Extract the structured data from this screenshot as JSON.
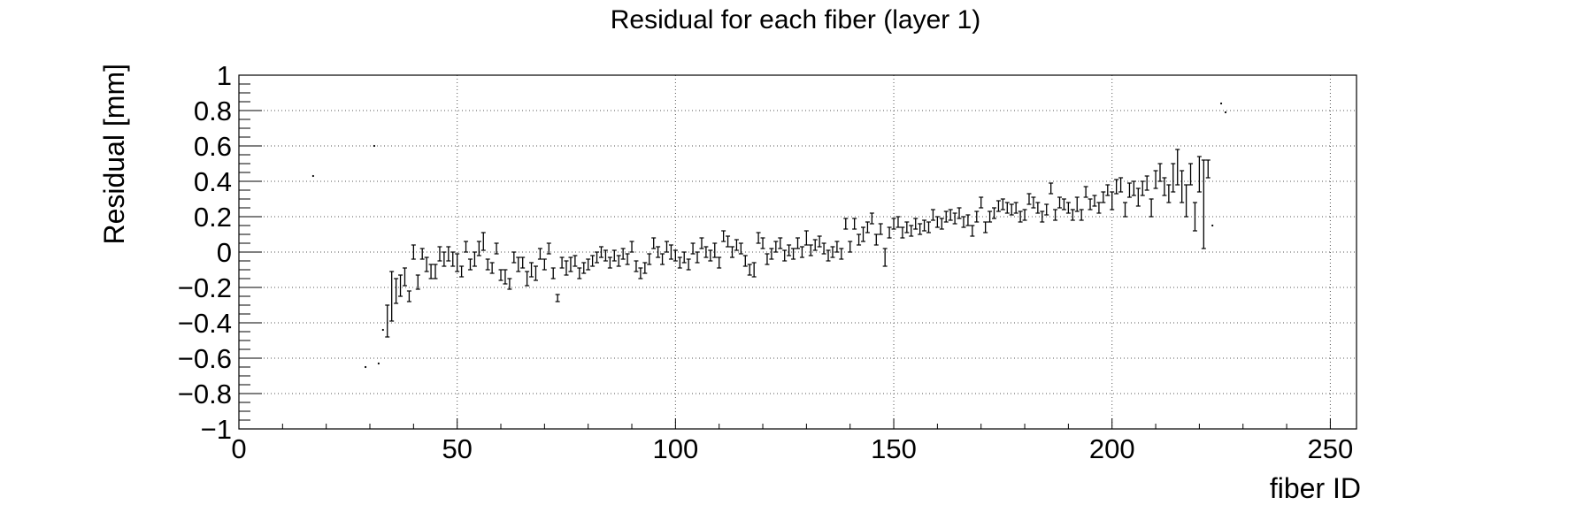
{
  "chart_data": {
    "type": "scatter",
    "title": "Residual for each fiber (layer 1)",
    "xlabel": "fiber ID",
    "ylabel": "Residual [mm]",
    "xlim": [
      0,
      256
    ],
    "ylim": [
      -1,
      1
    ],
    "grid": true,
    "x_ticks": [
      0,
      50,
      100,
      150,
      200,
      250
    ],
    "x_tick_labels": [
      "0",
      "50",
      "100",
      "150",
      "200",
      "250"
    ],
    "y_ticks": [
      -1,
      -0.8,
      -0.6,
      -0.4,
      -0.2,
      0,
      0.2,
      0.4,
      0.6,
      0.8,
      1
    ],
    "y_tick_labels": [
      "−1",
      "−0.8",
      "−0.6",
      "−0.4",
      "−0.2",
      "0",
      "0.2",
      "0.4",
      "0.6",
      "0.8",
      "1"
    ],
    "series": [
      {
        "error_bars": true,
        "points": [
          [
            17,
            0.43,
            0.0
          ],
          [
            29,
            -0.65,
            0.0
          ],
          [
            31,
            0.6,
            0.0
          ],
          [
            32,
            -0.63,
            0.0
          ],
          [
            33,
            -0.44,
            0.0
          ],
          [
            34,
            -0.39,
            0.09
          ],
          [
            35,
            -0.25,
            0.14
          ],
          [
            36,
            -0.22,
            0.07
          ],
          [
            37,
            -0.19,
            0.06
          ],
          [
            38,
            -0.14,
            0.05
          ],
          [
            39,
            -0.25,
            0.03
          ],
          [
            40,
            0.0,
            0.04
          ],
          [
            41,
            -0.17,
            0.04
          ],
          [
            42,
            -0.01,
            0.03
          ],
          [
            43,
            -0.07,
            0.04
          ],
          [
            44,
            -0.11,
            0.04
          ],
          [
            45,
            -0.11,
            0.04
          ],
          [
            46,
            -0.01,
            0.04
          ],
          [
            47,
            -0.04,
            0.04
          ],
          [
            48,
            -0.01,
            0.04
          ],
          [
            49,
            -0.04,
            0.04
          ],
          [
            50,
            -0.06,
            0.05
          ],
          [
            51,
            -0.11,
            0.03
          ],
          [
            52,
            0.03,
            0.03
          ],
          [
            53,
            -0.07,
            0.03
          ],
          [
            54,
            -0.04,
            0.04
          ],
          [
            55,
            0.02,
            0.04
          ],
          [
            56,
            0.06,
            0.05
          ],
          [
            57,
            -0.07,
            0.03
          ],
          [
            58,
            -0.09,
            0.03
          ],
          [
            59,
            0.02,
            0.03
          ],
          [
            60,
            -0.13,
            0.03
          ],
          [
            61,
            -0.14,
            0.04
          ],
          [
            62,
            -0.18,
            0.03
          ],
          [
            63,
            -0.03,
            0.03
          ],
          [
            64,
            -0.07,
            0.04
          ],
          [
            65,
            -0.06,
            0.03
          ],
          [
            66,
            -0.15,
            0.04
          ],
          [
            67,
            -0.1,
            0.04
          ],
          [
            68,
            -0.12,
            0.04
          ],
          [
            69,
            -0.01,
            0.03
          ],
          [
            70,
            -0.07,
            0.03
          ],
          [
            71,
            0.02,
            0.03
          ],
          [
            72,
            -0.12,
            0.03
          ],
          [
            73,
            -0.26,
            0.02
          ],
          [
            74,
            -0.06,
            0.03
          ],
          [
            75,
            -0.09,
            0.04
          ],
          [
            76,
            -0.07,
            0.04
          ],
          [
            77,
            -0.05,
            0.03
          ],
          [
            78,
            -0.12,
            0.03
          ],
          [
            79,
            -0.09,
            0.03
          ],
          [
            80,
            -0.07,
            0.03
          ],
          [
            81,
            -0.05,
            0.03
          ],
          [
            82,
            -0.03,
            0.03
          ],
          [
            83,
            0.0,
            0.03
          ],
          [
            84,
            -0.02,
            0.03
          ],
          [
            85,
            -0.06,
            0.03
          ],
          [
            86,
            -0.02,
            0.03
          ],
          [
            87,
            -0.05,
            0.03
          ],
          [
            88,
            -0.01,
            0.03
          ],
          [
            89,
            -0.04,
            0.03
          ],
          [
            90,
            0.03,
            0.03
          ],
          [
            91,
            -0.08,
            0.03
          ],
          [
            92,
            -0.12,
            0.03
          ],
          [
            93,
            -0.09,
            0.03
          ],
          [
            94,
            -0.04,
            0.03
          ],
          [
            95,
            0.05,
            0.03
          ],
          [
            96,
            0.0,
            0.03
          ],
          [
            97,
            -0.04,
            0.03
          ],
          [
            98,
            0.03,
            0.03
          ],
          [
            99,
            0.0,
            0.04
          ],
          [
            100,
            -0.02,
            0.03
          ],
          [
            101,
            -0.06,
            0.03
          ],
          [
            102,
            -0.03,
            0.03
          ],
          [
            103,
            -0.07,
            0.03
          ],
          [
            104,
            0.02,
            0.03
          ],
          [
            105,
            -0.03,
            0.03
          ],
          [
            106,
            0.05,
            0.03
          ],
          [
            107,
            0.0,
            0.03
          ],
          [
            108,
            -0.02,
            0.03
          ],
          [
            109,
            0.01,
            0.04
          ],
          [
            110,
            -0.06,
            0.03
          ],
          [
            111,
            0.09,
            0.03
          ],
          [
            112,
            0.06,
            0.03
          ],
          [
            113,
            0.0,
            0.03
          ],
          [
            114,
            0.04,
            0.03
          ],
          [
            115,
            0.02,
            0.03
          ],
          [
            116,
            -0.05,
            0.03
          ],
          [
            117,
            -0.1,
            0.03
          ],
          [
            118,
            -0.1,
            0.04
          ],
          [
            119,
            0.08,
            0.03
          ],
          [
            120,
            0.05,
            0.03
          ],
          [
            121,
            -0.04,
            0.03
          ],
          [
            122,
            -0.01,
            0.03
          ],
          [
            123,
            0.03,
            0.03
          ],
          [
            124,
            0.05,
            0.03
          ],
          [
            125,
            -0.02,
            0.03
          ],
          [
            126,
            0.01,
            0.03
          ],
          [
            127,
            -0.01,
            0.03
          ],
          [
            128,
            0.05,
            0.03
          ],
          [
            129,
            0.0,
            0.03
          ],
          [
            130,
            0.08,
            0.04
          ],
          [
            131,
            0.01,
            0.03
          ],
          [
            132,
            0.04,
            0.03
          ],
          [
            133,
            0.06,
            0.03
          ],
          [
            134,
            0.02,
            0.03
          ],
          [
            135,
            -0.02,
            0.03
          ],
          [
            136,
            0.0,
            0.03
          ],
          [
            137,
            0.03,
            0.03
          ],
          [
            138,
            -0.01,
            0.03
          ],
          [
            139,
            0.16,
            0.03
          ],
          [
            140,
            0.03,
            0.03
          ],
          [
            141,
            0.16,
            0.03
          ],
          [
            142,
            0.07,
            0.03
          ],
          [
            143,
            0.1,
            0.04
          ],
          [
            144,
            0.14,
            0.03
          ],
          [
            145,
            0.19,
            0.03
          ],
          [
            146,
            0.07,
            0.03
          ],
          [
            147,
            0.13,
            0.03
          ],
          [
            148,
            -0.03,
            0.05
          ],
          [
            149,
            0.11,
            0.03
          ],
          [
            150,
            0.16,
            0.03
          ],
          [
            151,
            0.17,
            0.03
          ],
          [
            152,
            0.11,
            0.03
          ],
          [
            153,
            0.14,
            0.03
          ],
          [
            154,
            0.12,
            0.03
          ],
          [
            155,
            0.16,
            0.03
          ],
          [
            156,
            0.13,
            0.03
          ],
          [
            157,
            0.15,
            0.03
          ],
          [
            158,
            0.14,
            0.03
          ],
          [
            159,
            0.21,
            0.03
          ],
          [
            160,
            0.17,
            0.03
          ],
          [
            161,
            0.16,
            0.03
          ],
          [
            162,
            0.2,
            0.03
          ],
          [
            163,
            0.21,
            0.03
          ],
          [
            164,
            0.19,
            0.03
          ],
          [
            165,
            0.22,
            0.03
          ],
          [
            166,
            0.17,
            0.03
          ],
          [
            167,
            0.18,
            0.03
          ],
          [
            168,
            0.12,
            0.03
          ],
          [
            169,
            0.2,
            0.03
          ],
          [
            170,
            0.28,
            0.03
          ],
          [
            171,
            0.14,
            0.03
          ],
          [
            172,
            0.2,
            0.03
          ],
          [
            173,
            0.22,
            0.03
          ],
          [
            174,
            0.26,
            0.03
          ],
          [
            175,
            0.27,
            0.03
          ],
          [
            176,
            0.25,
            0.03
          ],
          [
            177,
            0.24,
            0.03
          ],
          [
            178,
            0.25,
            0.03
          ],
          [
            179,
            0.2,
            0.03
          ],
          [
            180,
            0.21,
            0.03
          ],
          [
            181,
            0.3,
            0.03
          ],
          [
            182,
            0.28,
            0.03
          ],
          [
            183,
            0.25,
            0.03
          ],
          [
            184,
            0.2,
            0.03
          ],
          [
            185,
            0.24,
            0.03
          ],
          [
            186,
            0.36,
            0.03
          ],
          [
            187,
            0.21,
            0.03
          ],
          [
            188,
            0.28,
            0.03
          ],
          [
            189,
            0.27,
            0.03
          ],
          [
            190,
            0.25,
            0.03
          ],
          [
            191,
            0.21,
            0.03
          ],
          [
            192,
            0.27,
            0.04
          ],
          [
            193,
            0.21,
            0.03
          ],
          [
            194,
            0.34,
            0.03
          ],
          [
            195,
            0.27,
            0.03
          ],
          [
            196,
            0.29,
            0.03
          ],
          [
            197,
            0.25,
            0.03
          ],
          [
            198,
            0.31,
            0.03
          ],
          [
            199,
            0.35,
            0.03
          ],
          [
            200,
            0.29,
            0.05
          ],
          [
            201,
            0.37,
            0.04
          ],
          [
            202,
            0.38,
            0.04
          ],
          [
            203,
            0.24,
            0.04
          ],
          [
            204,
            0.35,
            0.04
          ],
          [
            205,
            0.36,
            0.04
          ],
          [
            206,
            0.31,
            0.05
          ],
          [
            207,
            0.36,
            0.04
          ],
          [
            208,
            0.39,
            0.04
          ],
          [
            209,
            0.25,
            0.05
          ],
          [
            210,
            0.41,
            0.05
          ],
          [
            211,
            0.45,
            0.05
          ],
          [
            212,
            0.37,
            0.05
          ],
          [
            213,
            0.33,
            0.05
          ],
          [
            214,
            0.42,
            0.08
          ],
          [
            215,
            0.48,
            0.1
          ],
          [
            216,
            0.37,
            0.09
          ],
          [
            217,
            0.29,
            0.09
          ],
          [
            218,
            0.44,
            0.06
          ],
          [
            219,
            0.2,
            0.08
          ],
          [
            220,
            0.44,
            0.1
          ],
          [
            221,
            0.27,
            0.25
          ],
          [
            222,
            0.47,
            0.05
          ],
          [
            223,
            0.15,
            0.0
          ],
          [
            225,
            0.84,
            0.0
          ],
          [
            226,
            0.79,
            0.0
          ]
        ]
      }
    ]
  }
}
